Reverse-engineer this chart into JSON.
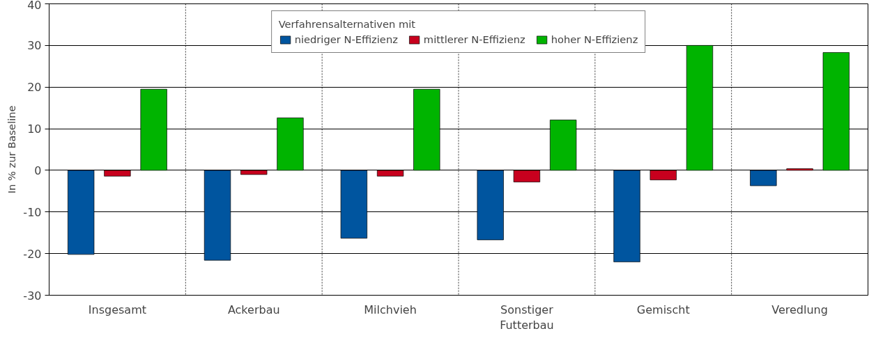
{
  "chart_data": {
    "type": "bar",
    "ylabel": "In % zur Baseline",
    "legend_title": "Verfahrensalternativen mit",
    "legend": "top",
    "grid": true,
    "categories": [
      "Insgesamt",
      "Ackerbau",
      "Milchvieh",
      "Sonstiger\nFutterbau",
      "Gemischt",
      "Veredlung"
    ],
    "series": [
      {
        "name": "niedriger N-Effizienz",
        "color": "#00559f",
        "values": [
          -20.2,
          -21.6,
          -16.3,
          -16.7,
          -22.0,
          -3.7
        ]
      },
      {
        "name": "mittlerer N-Effizienz",
        "color": "#c8001e",
        "values": [
          -1.4,
          -1.0,
          -1.4,
          -2.8,
          -2.3,
          0.4
        ]
      },
      {
        "name": "hoher N-Effizienz",
        "color": "#00b400",
        "values": [
          19.5,
          12.6,
          19.5,
          12.1,
          30.0,
          28.3
        ]
      }
    ],
    "ylim": [
      -30,
      40
    ],
    "yticks": [
      -30,
      -20,
      -10,
      0,
      10,
      20,
      30,
      40
    ]
  }
}
